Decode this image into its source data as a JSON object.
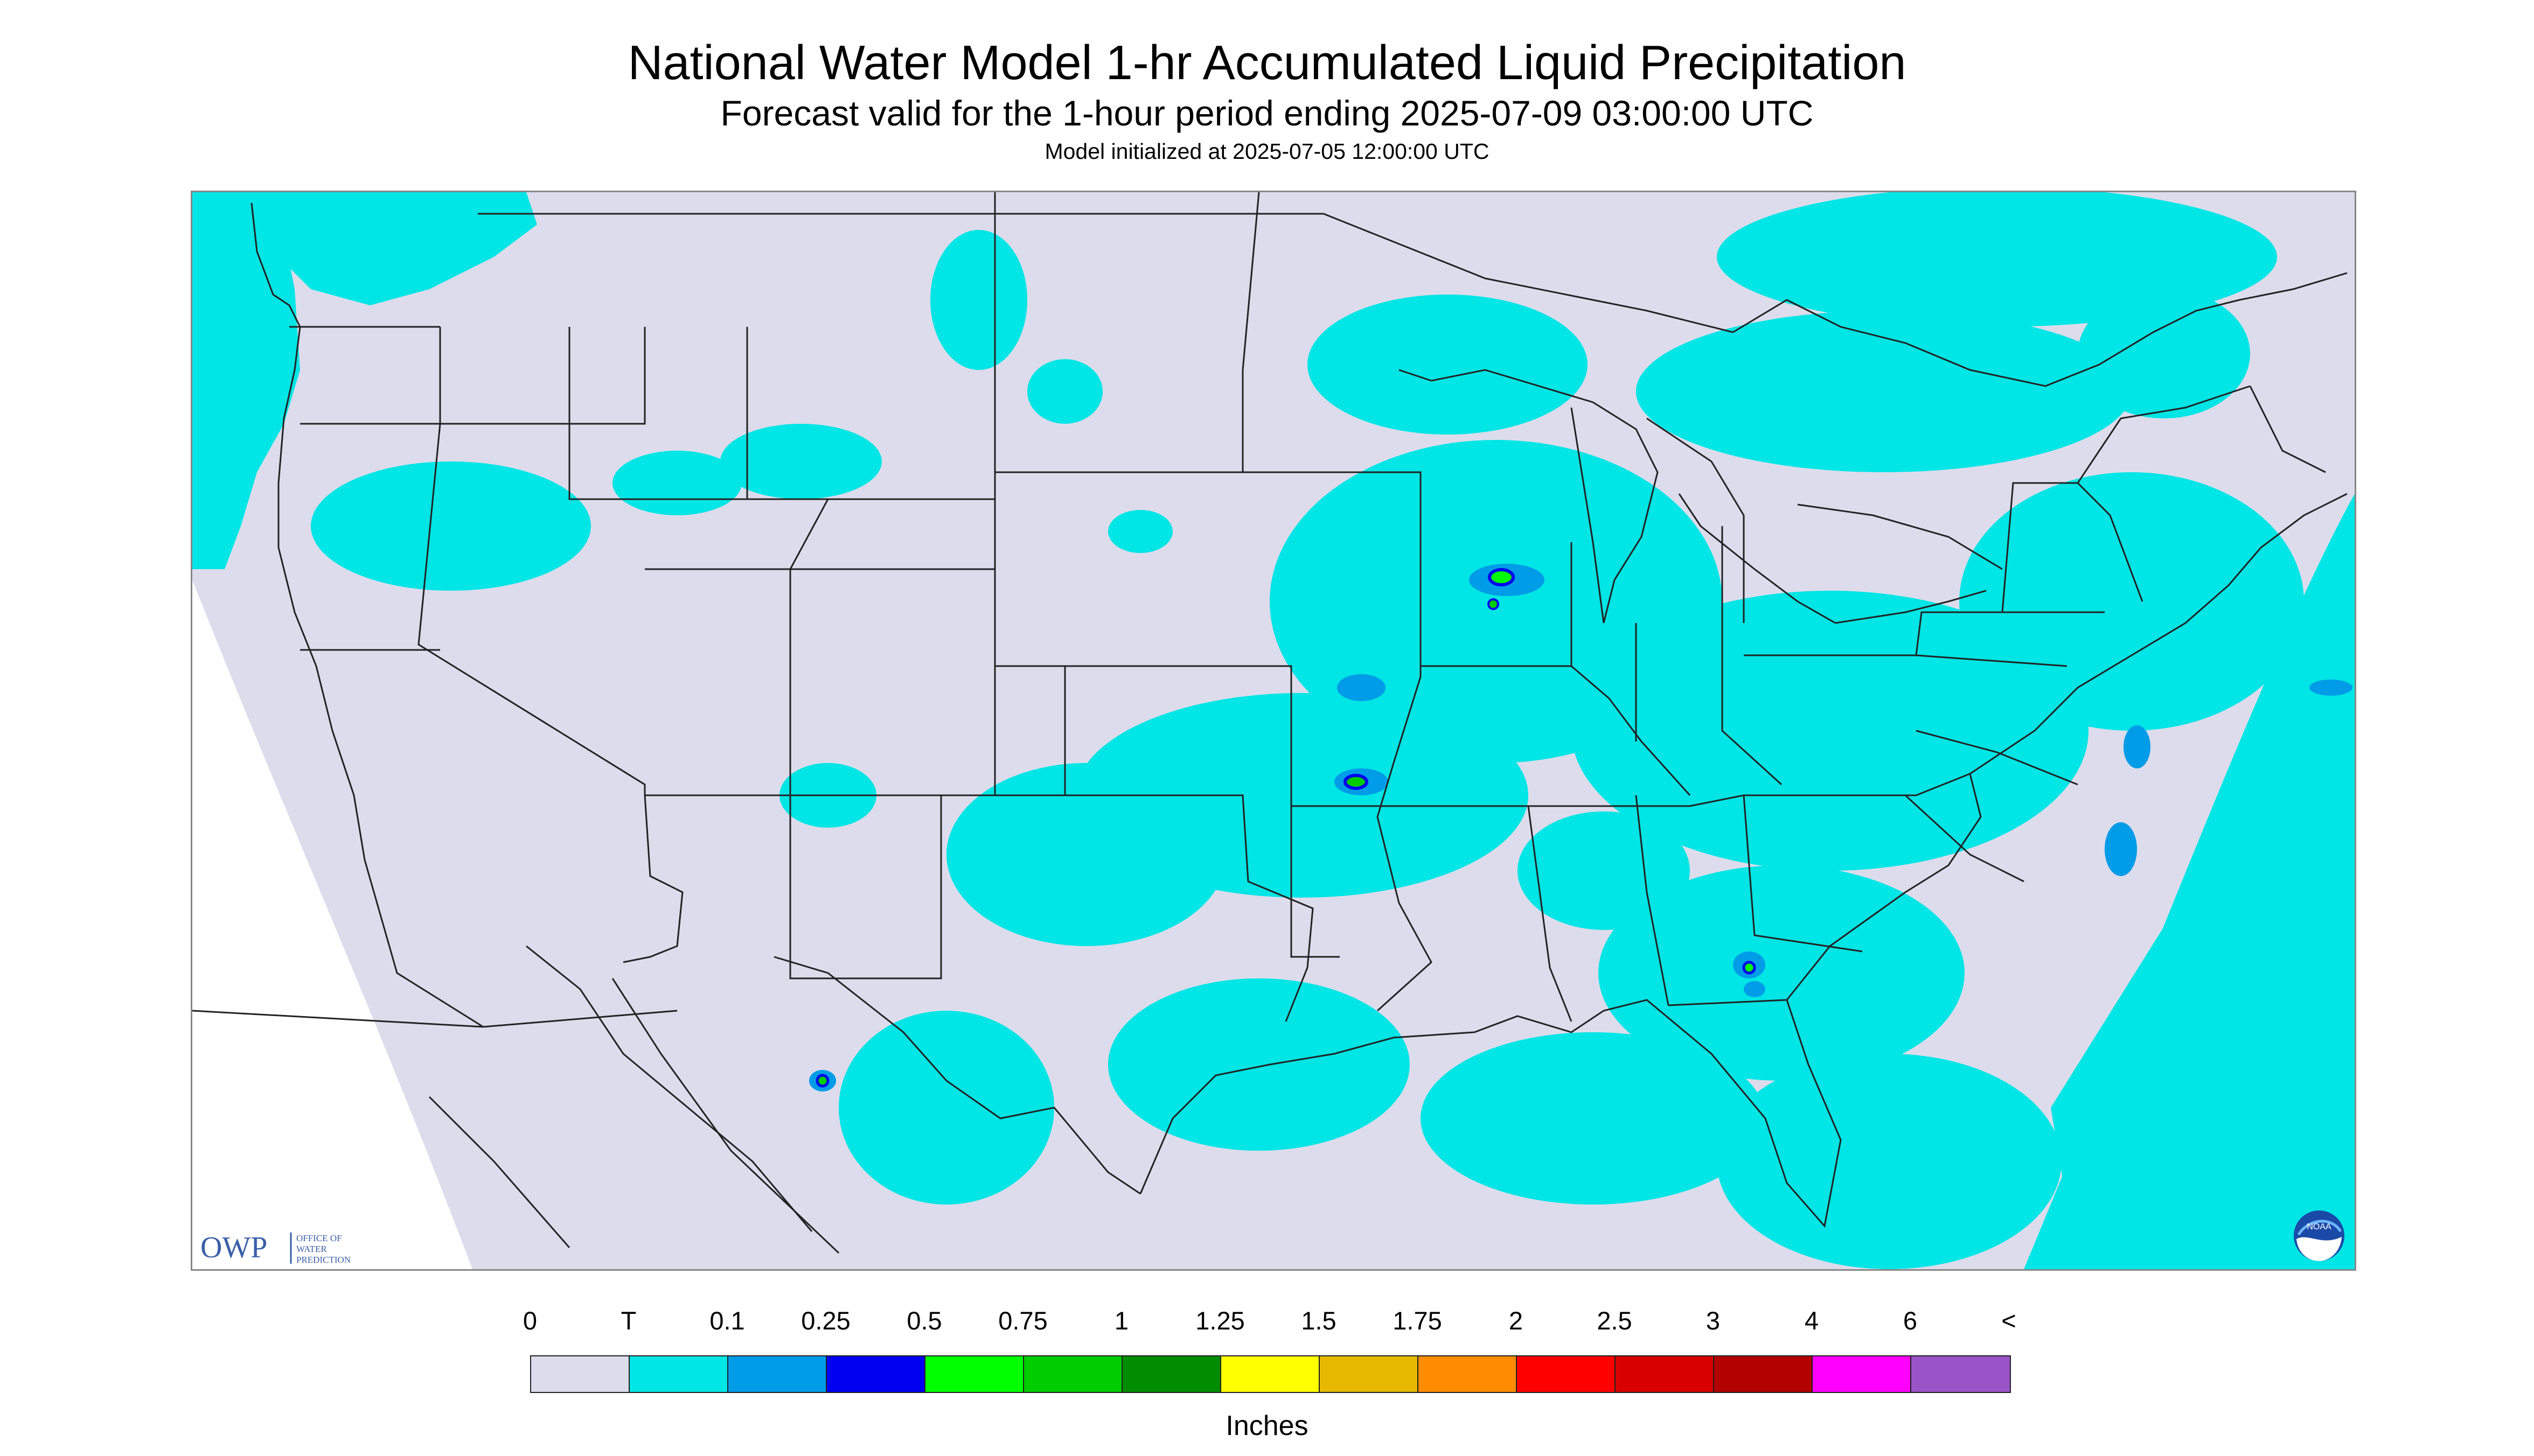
{
  "header": {
    "title": "National Water Model 1-hr Accumulated Liquid Precipitation",
    "subtitle": "Forecast valid for the 1-hour period ending 2025-07-09 03:00:00 UTC",
    "init": "Model initialized at 2025-07-05 12:00:00 UTC"
  },
  "map": {
    "region": "Continental United States",
    "background_color": "#dcdcec",
    "light_precip_color": "#00e5e5",
    "boundary_color": "#222222"
  },
  "logos": {
    "owp": {
      "mark": "OWP",
      "lines": [
        "OFFICE OF",
        "WATER",
        "PREDICTION"
      ],
      "icon": "owp-logo"
    },
    "noaa": {
      "text": "NOAA",
      "icon": "noaa-logo"
    }
  },
  "legend": {
    "labels": [
      "0",
      "T",
      "0.1",
      "0.25",
      "0.5",
      "0.75",
      "1",
      "1.25",
      "1.5",
      "1.75",
      "2",
      "2.5",
      "3",
      "4",
      "6",
      "<"
    ],
    "colors": [
      "#dcdcec",
      "#00e5e5",
      "#009ce8",
      "#0000f0",
      "#00ff00",
      "#00cc00",
      "#008c00",
      "#ffff00",
      "#e6b800",
      "#ff8c00",
      "#ff0000",
      "#d80000",
      "#b30000",
      "#ff00ff",
      "#9955c8"
    ],
    "units": "Inches"
  }
}
